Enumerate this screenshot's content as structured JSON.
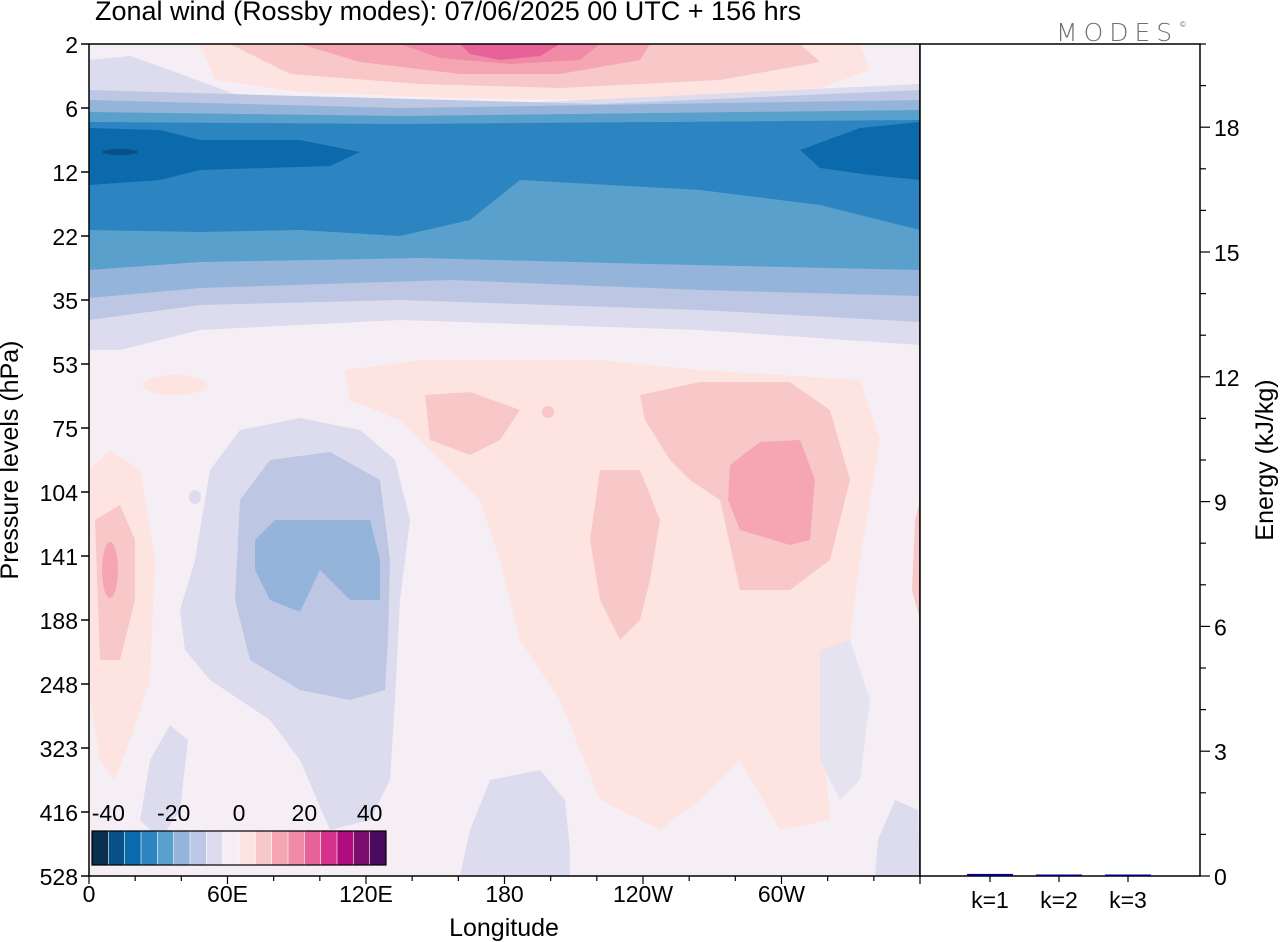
{
  "title": "Zonal wind (Rossby modes):  07/06/2025  00 UTC  + 156 hrs",
  "logo": "MODES",
  "logo_mark": "©",
  "chart_data": [
    {
      "type": "heatmap",
      "title": "Zonal wind (Rossby modes):  07/06/2025  00 UTC  + 156 hrs",
      "xlabel": "Longitude",
      "ylabel": "Pressure levels (hPa)",
      "x_ticks": [
        "0",
        "60E",
        "120E",
        "180",
        "120W",
        "60W"
      ],
      "y_ticks": [
        "2",
        "6",
        "12",
        "22",
        "35",
        "53",
        "75",
        "104",
        "141",
        "188",
        "248",
        "323",
        "416",
        "528"
      ],
      "y_scale": "log-pressure",
      "colorbar": {
        "ticks": [
          "-40",
          "-20",
          "0",
          "20",
          "40"
        ],
        "range": [
          -45,
          45
        ],
        "colors": [
          "#0b2f4f",
          "#07508a",
          "#0a6aab",
          "#2c85c0",
          "#5aa0cc",
          "#94b5d9",
          "#bdc6e3",
          "#dcdcee",
          "#f5eff5",
          "#fde4e1",
          "#f8c8c8",
          "#f5a6b2",
          "#f08aa6",
          "#e8629a",
          "#d6328c",
          "#b00c7d",
          "#7c0c6d",
          "#4a0b5c"
        ]
      },
      "features": [
        {
          "level_range": [
            "2",
            "6"
          ],
          "lon_center": "180",
          "sign": "positive",
          "peak": 15
        },
        {
          "level_range": [
            "6",
            "35"
          ],
          "lon_range": [
            "0",
            "360"
          ],
          "sign": "negative",
          "peak": -25
        },
        {
          "level_range": [
            "75",
            "248"
          ],
          "lon_range": [
            "60E",
            "120E"
          ],
          "sign": "negative",
          "peak": -10
        },
        {
          "level_range": [
            "75",
            "188"
          ],
          "lon_center": "60W",
          "sign": "positive",
          "peak": 8
        }
      ]
    },
    {
      "type": "bar",
      "categories": [
        "k=1",
        "k=2",
        "k=3"
      ],
      "values": [
        0.05,
        0.02,
        0.01
      ],
      "ylabel": "Energy (kJ/kg)",
      "ylim": [
        0,
        20
      ],
      "y_ticks": [
        "0",
        "3",
        "6",
        "9",
        "12",
        "15",
        "18"
      ],
      "bar_color": "#000080"
    }
  ]
}
